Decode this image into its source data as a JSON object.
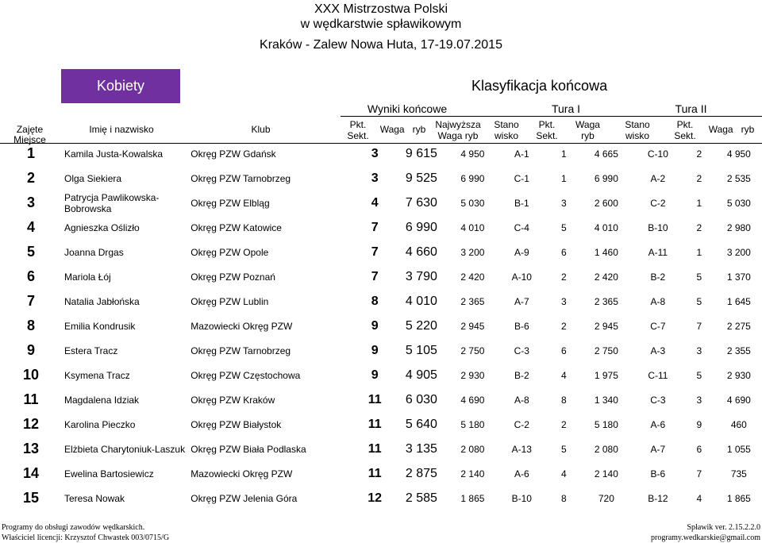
{
  "header": {
    "title_line1": "XXX Mistrzostwa Polski",
    "title_line2": "w wędkarstwie spławikowym",
    "title_line3": "Kraków - Zalew Nowa Huta, 17-19.07.2015",
    "category_badge": "Kobiety",
    "classification_title": "Klasyfikacja końcowa",
    "badge_color": "#7030a0"
  },
  "columns": {
    "group_final": "Wyniki końcowe",
    "group_t1": "Tura I",
    "group_t2": "Tura II",
    "place": "Zajęte Miejsce",
    "name": "Imię i nazwisko",
    "club": "Klub",
    "pts_a": "Pkt.",
    "pts_b": "Sekt.",
    "weight": "Waga   ryb",
    "max_a": "Najwyższa",
    "max_b": "Waga ryb",
    "t1_sec_a": "Stano",
    "t1_sec_b": "wisko",
    "t1_pts_a": "Pkt.",
    "t1_pts_b": "Sekt.",
    "t1_w_a": "Waga",
    "t1_w_b": "ryb",
    "t2_sec_a": "Stano",
    "t2_sec_b": "wisko",
    "t2_pts_a": "Pkt.",
    "t2_pts_b": "Sekt.",
    "t2_w": "Waga   ryb"
  },
  "rows": [
    {
      "place": "1",
      "name": "Kamila Justa-Kowalska",
      "club": "Okręg PZW Gdańsk",
      "pts": "3",
      "weight": "9 615",
      "max": "4 950",
      "t1_sec": "A-1",
      "t1_pts": "1",
      "t1_w": "4 665",
      "t2_sec": "C-10",
      "t2_pts": "2",
      "t2_w": "4 950"
    },
    {
      "place": "2",
      "name": "Olga Siekiera",
      "club": "Okręg PZW Tarnobrzeg",
      "pts": "3",
      "weight": "9 525",
      "max": "6 990",
      "t1_sec": "C-1",
      "t1_pts": "1",
      "t1_w": "6 990",
      "t2_sec": "A-2",
      "t2_pts": "2",
      "t2_w": "2 535"
    },
    {
      "place": "3",
      "name": "Patrycja Pawlikowska-Bobrowska",
      "club": "Okręg PZW Elbląg",
      "pts": "4",
      "weight": "7 630",
      "max": "5 030",
      "t1_sec": "B-1",
      "t1_pts": "3",
      "t1_w": "2 600",
      "t2_sec": "C-2",
      "t2_pts": "1",
      "t2_w": "5 030"
    },
    {
      "place": "4",
      "name": "Agnieszka Oślizło",
      "club": "Okręg PZW Katowice",
      "pts": "7",
      "weight": "6 990",
      "max": "4 010",
      "t1_sec": "C-4",
      "t1_pts": "5",
      "t1_w": "4 010",
      "t2_sec": "B-10",
      "t2_pts": "2",
      "t2_w": "2 980"
    },
    {
      "place": "5",
      "name": "Joanna Drgas",
      "club": "Okręg PZW Opole",
      "pts": "7",
      "weight": "4 660",
      "max": "3 200",
      "t1_sec": "A-9",
      "t1_pts": "6",
      "t1_w": "1 460",
      "t2_sec": "A-11",
      "t2_pts": "1",
      "t2_w": "3 200"
    },
    {
      "place": "6",
      "name": "Mariola Łój",
      "club": "Okręg PZW Poznań",
      "pts": "7",
      "weight": "3 790",
      "max": "2 420",
      "t1_sec": "A-10",
      "t1_pts": "2",
      "t1_w": "2 420",
      "t2_sec": "B-2",
      "t2_pts": "5",
      "t2_w": "1 370"
    },
    {
      "place": "7",
      "name": "Natalia Jabłońska",
      "club": "Okręg PZW Lublin",
      "pts": "8",
      "weight": "4 010",
      "max": "2 365",
      "t1_sec": "A-7",
      "t1_pts": "3",
      "t1_w": "2 365",
      "t2_sec": "A-8",
      "t2_pts": "5",
      "t2_w": "1 645"
    },
    {
      "place": "8",
      "name": "Emilia Kondrusik",
      "club": "Mazowiecki Okręg PZW",
      "pts": "9",
      "weight": "5 220",
      "max": "2 945",
      "t1_sec": "B-6",
      "t1_pts": "2",
      "t1_w": "2 945",
      "t2_sec": "C-7",
      "t2_pts": "7",
      "t2_w": "2 275"
    },
    {
      "place": "9",
      "name": "Estera Tracz",
      "club": "Okręg PZW Tarnobrzeg",
      "pts": "9",
      "weight": "5 105",
      "max": "2 750",
      "t1_sec": "C-3",
      "t1_pts": "6",
      "t1_w": "2 750",
      "t2_sec": "A-3",
      "t2_pts": "3",
      "t2_w": "2 355"
    },
    {
      "place": "10",
      "name": "Ksymena Tracz",
      "club": "Okręg PZW Częstochowa",
      "pts": "9",
      "weight": "4 905",
      "max": "2 930",
      "t1_sec": "B-2",
      "t1_pts": "4",
      "t1_w": "1 975",
      "t2_sec": "C-11",
      "t2_pts": "5",
      "t2_w": "2 930"
    },
    {
      "place": "11",
      "name": "Magdalena Idziak",
      "club": "Okręg PZW Kraków",
      "pts": "11",
      "weight": "6 030",
      "max": "4 690",
      "t1_sec": "A-8",
      "t1_pts": "8",
      "t1_w": "1 340",
      "t2_sec": "C-3",
      "t2_pts": "3",
      "t2_w": "4 690"
    },
    {
      "place": "12",
      "name": "Karolina Pieczko",
      "club": "Okręg PZW Białystok",
      "pts": "11",
      "weight": "5 640",
      "max": "5 180",
      "t1_sec": "C-2",
      "t1_pts": "2",
      "t1_w": "5 180",
      "t2_sec": "A-6",
      "t2_pts": "9",
      "t2_w": "460"
    },
    {
      "place": "13",
      "name": "Elżbieta Charytoniuk-Laszuk",
      "club": "Okręg PZW Biała Podlaska",
      "pts": "11",
      "weight": "3 135",
      "max": "2 080",
      "t1_sec": "A-13",
      "t1_pts": "5",
      "t1_w": "2 080",
      "t2_sec": "A-7",
      "t2_pts": "6",
      "t2_w": "1 055"
    },
    {
      "place": "14",
      "name": "Ewelina Bartosiewicz",
      "club": "Mazowiecki Okręg PZW",
      "pts": "11",
      "weight": "2 875",
      "max": "2 140",
      "t1_sec": "A-6",
      "t1_pts": "4",
      "t1_w": "2 140",
      "t2_sec": "B-6",
      "t2_pts": "7",
      "t2_w": "735"
    },
    {
      "place": "15",
      "name": "Teresa Nowak",
      "club": "Okręg PZW Jelenia Góra",
      "pts": "12",
      "weight": "2 585",
      "max": "1 865",
      "t1_sec": "B-10",
      "t1_pts": "8",
      "t1_w": "720",
      "t2_sec": "B-12",
      "t2_pts": "4",
      "t2_w": "1 865"
    }
  ],
  "footer": {
    "left1": "Programy do obsługi zawodów wędkarskich.",
    "left2": "Właściciel licencji:  Krzysztof Chwastek 003/0715/G",
    "right1": "Spławik ver.  2.15.2.2.0",
    "right2": "programy.wedkarskie@gmail.com"
  }
}
